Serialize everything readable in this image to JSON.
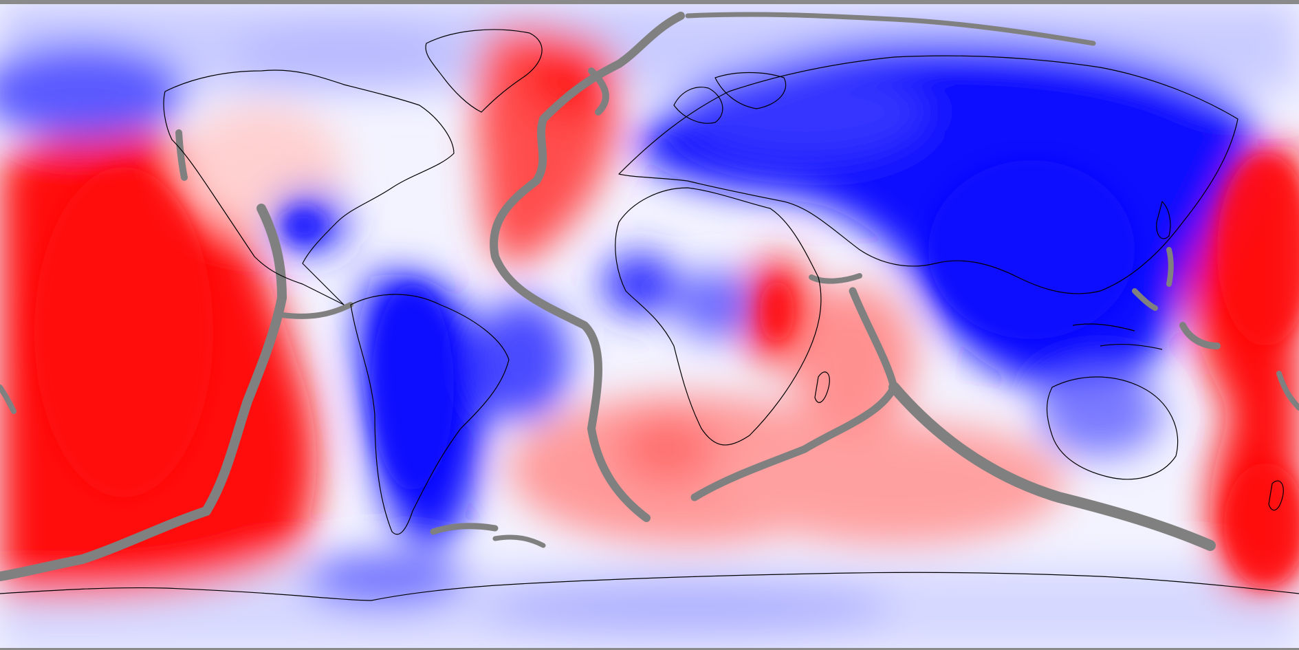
{
  "map": {
    "projection": "equirectangular",
    "center_longitude": -90,
    "description_colors": {
      "positive_anomaly": "#ff0d0d",
      "negative_anomaly": "#0a0aff",
      "neutral": "#ffffff",
      "plate_boundary": "#808080",
      "coastline": "#000000",
      "frame": "#8a8a8a"
    }
  }
}
